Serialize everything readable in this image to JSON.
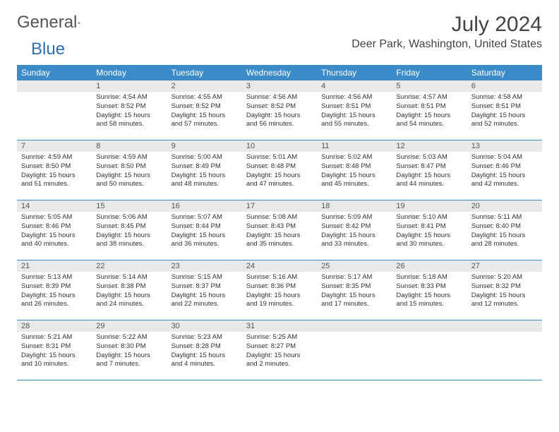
{
  "brand": {
    "part1": "General",
    "part2": "Blue"
  },
  "title": {
    "month_year": "July 2024",
    "location": "Deer Park, Washington, United States"
  },
  "colors": {
    "header_bg": "#3b8bc9",
    "header_text": "#ffffff",
    "daynum_bg": "#e9e9e9",
    "daynum_text": "#555555",
    "body_text": "#333333",
    "rule": "#3b8bc9",
    "logo_gray": "#555555",
    "logo_blue": "#2f6fb0",
    "page_bg": "#ffffff"
  },
  "typography": {
    "title_fontsize": 30,
    "location_fontsize": 16,
    "header_fontsize": 12,
    "daynum_fontsize": 11,
    "info_fontsize": 9.5
  },
  "weekdays": [
    "Sunday",
    "Monday",
    "Tuesday",
    "Wednesday",
    "Thursday",
    "Friday",
    "Saturday"
  ],
  "weeks": [
    [
      {
        "day": "",
        "sunrise": "",
        "sunset": "",
        "daylight1": "",
        "daylight2": ""
      },
      {
        "day": "1",
        "sunrise": "Sunrise: 4:54 AM",
        "sunset": "Sunset: 8:52 PM",
        "daylight1": "Daylight: 15 hours",
        "daylight2": "and 58 minutes."
      },
      {
        "day": "2",
        "sunrise": "Sunrise: 4:55 AM",
        "sunset": "Sunset: 8:52 PM",
        "daylight1": "Daylight: 15 hours",
        "daylight2": "and 57 minutes."
      },
      {
        "day": "3",
        "sunrise": "Sunrise: 4:56 AM",
        "sunset": "Sunset: 8:52 PM",
        "daylight1": "Daylight: 15 hours",
        "daylight2": "and 56 minutes."
      },
      {
        "day": "4",
        "sunrise": "Sunrise: 4:56 AM",
        "sunset": "Sunset: 8:51 PM",
        "daylight1": "Daylight: 15 hours",
        "daylight2": "and 55 minutes."
      },
      {
        "day": "5",
        "sunrise": "Sunrise: 4:57 AM",
        "sunset": "Sunset: 8:51 PM",
        "daylight1": "Daylight: 15 hours",
        "daylight2": "and 54 minutes."
      },
      {
        "day": "6",
        "sunrise": "Sunrise: 4:58 AM",
        "sunset": "Sunset: 8:51 PM",
        "daylight1": "Daylight: 15 hours",
        "daylight2": "and 52 minutes."
      }
    ],
    [
      {
        "day": "7",
        "sunrise": "Sunrise: 4:59 AM",
        "sunset": "Sunset: 8:50 PM",
        "daylight1": "Daylight: 15 hours",
        "daylight2": "and 51 minutes."
      },
      {
        "day": "8",
        "sunrise": "Sunrise: 4:59 AM",
        "sunset": "Sunset: 8:50 PM",
        "daylight1": "Daylight: 15 hours",
        "daylight2": "and 50 minutes."
      },
      {
        "day": "9",
        "sunrise": "Sunrise: 5:00 AM",
        "sunset": "Sunset: 8:49 PM",
        "daylight1": "Daylight: 15 hours",
        "daylight2": "and 48 minutes."
      },
      {
        "day": "10",
        "sunrise": "Sunrise: 5:01 AM",
        "sunset": "Sunset: 8:48 PM",
        "daylight1": "Daylight: 15 hours",
        "daylight2": "and 47 minutes."
      },
      {
        "day": "11",
        "sunrise": "Sunrise: 5:02 AM",
        "sunset": "Sunset: 8:48 PM",
        "daylight1": "Daylight: 15 hours",
        "daylight2": "and 45 minutes."
      },
      {
        "day": "12",
        "sunrise": "Sunrise: 5:03 AM",
        "sunset": "Sunset: 8:47 PM",
        "daylight1": "Daylight: 15 hours",
        "daylight2": "and 44 minutes."
      },
      {
        "day": "13",
        "sunrise": "Sunrise: 5:04 AM",
        "sunset": "Sunset: 8:46 PM",
        "daylight1": "Daylight: 15 hours",
        "daylight2": "and 42 minutes."
      }
    ],
    [
      {
        "day": "14",
        "sunrise": "Sunrise: 5:05 AM",
        "sunset": "Sunset: 8:46 PM",
        "daylight1": "Daylight: 15 hours",
        "daylight2": "and 40 minutes."
      },
      {
        "day": "15",
        "sunrise": "Sunrise: 5:06 AM",
        "sunset": "Sunset: 8:45 PM",
        "daylight1": "Daylight: 15 hours",
        "daylight2": "and 38 minutes."
      },
      {
        "day": "16",
        "sunrise": "Sunrise: 5:07 AM",
        "sunset": "Sunset: 8:44 PM",
        "daylight1": "Daylight: 15 hours",
        "daylight2": "and 36 minutes."
      },
      {
        "day": "17",
        "sunrise": "Sunrise: 5:08 AM",
        "sunset": "Sunset: 8:43 PM",
        "daylight1": "Daylight: 15 hours",
        "daylight2": "and 35 minutes."
      },
      {
        "day": "18",
        "sunrise": "Sunrise: 5:09 AM",
        "sunset": "Sunset: 8:42 PM",
        "daylight1": "Daylight: 15 hours",
        "daylight2": "and 33 minutes."
      },
      {
        "day": "19",
        "sunrise": "Sunrise: 5:10 AM",
        "sunset": "Sunset: 8:41 PM",
        "daylight1": "Daylight: 15 hours",
        "daylight2": "and 30 minutes."
      },
      {
        "day": "20",
        "sunrise": "Sunrise: 5:11 AM",
        "sunset": "Sunset: 8:40 PM",
        "daylight1": "Daylight: 15 hours",
        "daylight2": "and 28 minutes."
      }
    ],
    [
      {
        "day": "21",
        "sunrise": "Sunrise: 5:13 AM",
        "sunset": "Sunset: 8:39 PM",
        "daylight1": "Daylight: 15 hours",
        "daylight2": "and 26 minutes."
      },
      {
        "day": "22",
        "sunrise": "Sunrise: 5:14 AM",
        "sunset": "Sunset: 8:38 PM",
        "daylight1": "Daylight: 15 hours",
        "daylight2": "and 24 minutes."
      },
      {
        "day": "23",
        "sunrise": "Sunrise: 5:15 AM",
        "sunset": "Sunset: 8:37 PM",
        "daylight1": "Daylight: 15 hours",
        "daylight2": "and 22 minutes."
      },
      {
        "day": "24",
        "sunrise": "Sunrise: 5:16 AM",
        "sunset": "Sunset: 8:36 PM",
        "daylight1": "Daylight: 15 hours",
        "daylight2": "and 19 minutes."
      },
      {
        "day": "25",
        "sunrise": "Sunrise: 5:17 AM",
        "sunset": "Sunset: 8:35 PM",
        "daylight1": "Daylight: 15 hours",
        "daylight2": "and 17 minutes."
      },
      {
        "day": "26",
        "sunrise": "Sunrise: 5:18 AM",
        "sunset": "Sunset: 8:33 PM",
        "daylight1": "Daylight: 15 hours",
        "daylight2": "and 15 minutes."
      },
      {
        "day": "27",
        "sunrise": "Sunrise: 5:20 AM",
        "sunset": "Sunset: 8:32 PM",
        "daylight1": "Daylight: 15 hours",
        "daylight2": "and 12 minutes."
      }
    ],
    [
      {
        "day": "28",
        "sunrise": "Sunrise: 5:21 AM",
        "sunset": "Sunset: 8:31 PM",
        "daylight1": "Daylight: 15 hours",
        "daylight2": "and 10 minutes."
      },
      {
        "day": "29",
        "sunrise": "Sunrise: 5:22 AM",
        "sunset": "Sunset: 8:30 PM",
        "daylight1": "Daylight: 15 hours",
        "daylight2": "and 7 minutes."
      },
      {
        "day": "30",
        "sunrise": "Sunrise: 5:23 AM",
        "sunset": "Sunset: 8:28 PM",
        "daylight1": "Daylight: 15 hours",
        "daylight2": "and 4 minutes."
      },
      {
        "day": "31",
        "sunrise": "Sunrise: 5:25 AM",
        "sunset": "Sunset: 8:27 PM",
        "daylight1": "Daylight: 15 hours",
        "daylight2": "and 2 minutes."
      },
      {
        "day": "",
        "sunrise": "",
        "sunset": "",
        "daylight1": "",
        "daylight2": ""
      },
      {
        "day": "",
        "sunrise": "",
        "sunset": "",
        "daylight1": "",
        "daylight2": ""
      },
      {
        "day": "",
        "sunrise": "",
        "sunset": "",
        "daylight1": "",
        "daylight2": ""
      }
    ]
  ]
}
